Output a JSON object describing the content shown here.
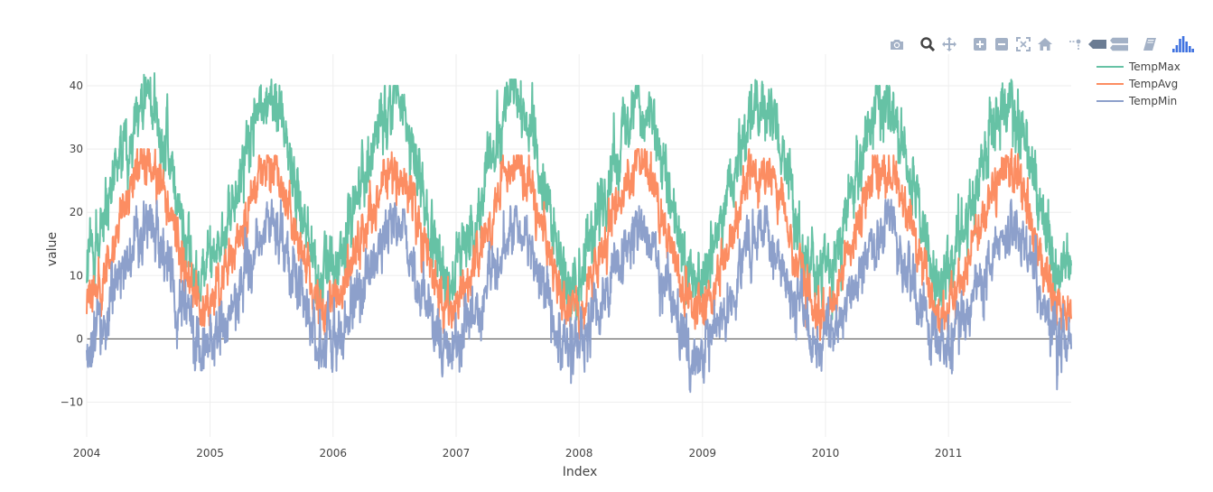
{
  "modebar": {
    "buttons": [
      {
        "name": "camera-icon",
        "color": "#a3b1c6"
      },
      {
        "name": "zoom-icon",
        "color": "#444444"
      },
      {
        "name": "pan-icon",
        "color": "#a3b1c6"
      },
      {
        "name": "zoom-in-icon",
        "color": "#a3b1c6"
      },
      {
        "name": "zoom-out-icon",
        "color": "#a3b1c6"
      },
      {
        "name": "autoscale-icon",
        "color": "#a3b1c6"
      },
      {
        "name": "home-icon",
        "color": "#a3b1c6"
      },
      {
        "name": "spike-lines-icon",
        "color": "#a3b1c6"
      },
      {
        "name": "hover-closest-icon",
        "color": "#6b7c93"
      },
      {
        "name": "hover-compare-icon",
        "color": "#a3b1c6"
      },
      {
        "name": "edit-in-chart-studio-icon",
        "color": "#a3b1c6"
      },
      {
        "name": "plotly-logo-icon",
        "color": "#3f72e0"
      }
    ]
  },
  "chart_data": {
    "type": "line",
    "title": "",
    "xlabel": "Index",
    "ylabel": "value",
    "x_range": [
      "2004-01-01",
      "2011-12-31"
    ],
    "ylim": [
      -15.5,
      45
    ],
    "x_ticks": [
      "2004",
      "2005",
      "2006",
      "2007",
      "2008",
      "2009",
      "2010",
      "2011"
    ],
    "y_ticks": [
      -10,
      0,
      10,
      20,
      30,
      40
    ],
    "y_tick_labels": [
      "−10",
      "0",
      "10",
      "20",
      "30",
      "40"
    ],
    "grid": true,
    "zero_line": true,
    "legend_position": "top-right",
    "x_step": "1 month",
    "series": [
      {
        "name": "TempMax",
        "color": "#66c2a5",
        "monthly_mean": [
          11,
          15,
          20,
          26,
          32,
          37,
          38,
          35,
          28,
          20,
          13,
          9
        ],
        "noise": 4.5,
        "annual_mean": [
          11,
          11,
          12,
          12,
          12,
          12,
          12,
          13
        ],
        "annual_range": [
          [
            6,
            42
          ],
          [
            1,
            41
          ],
          [
            5,
            40
          ],
          [
            3,
            41
          ],
          [
            3,
            40
          ],
          [
            1,
            41
          ],
          [
            2,
            40
          ],
          [
            3,
            41
          ]
        ]
      },
      {
        "name": "TempAvg",
        "color": "#fc8d62",
        "monthly_mean": [
          5,
          8,
          12,
          17,
          22,
          26,
          27,
          25,
          20,
          14,
          8,
          4
        ],
        "noise": 3.2,
        "annual_mean": [
          5,
          5,
          6,
          6,
          6,
          6,
          6,
          7
        ],
        "annual_range": [
          [
            2,
            30
          ],
          [
            -3,
            29
          ],
          [
            0,
            30
          ],
          [
            0,
            29
          ],
          [
            0,
            30
          ],
          [
            -3,
            30
          ],
          [
            -2,
            29
          ],
          [
            0,
            30
          ]
        ]
      },
      {
        "name": "TempMin",
        "color": "#8da0cb",
        "monthly_mean": [
          -1,
          1,
          4,
          8,
          13,
          16,
          18,
          16,
          11,
          6,
          2,
          -2
        ],
        "noise": 4.0,
        "annual_mean": [
          -1,
          -1,
          0,
          0,
          0,
          0,
          0,
          1
        ],
        "annual_range": [
          [
            -5,
            22
          ],
          [
            -13,
            22
          ],
          [
            -7,
            22
          ],
          [
            -7,
            21
          ],
          [
            -9,
            21
          ],
          [
            -11,
            21
          ],
          [
            -10,
            22
          ],
          [
            -8,
            22
          ]
        ]
      }
    ]
  }
}
